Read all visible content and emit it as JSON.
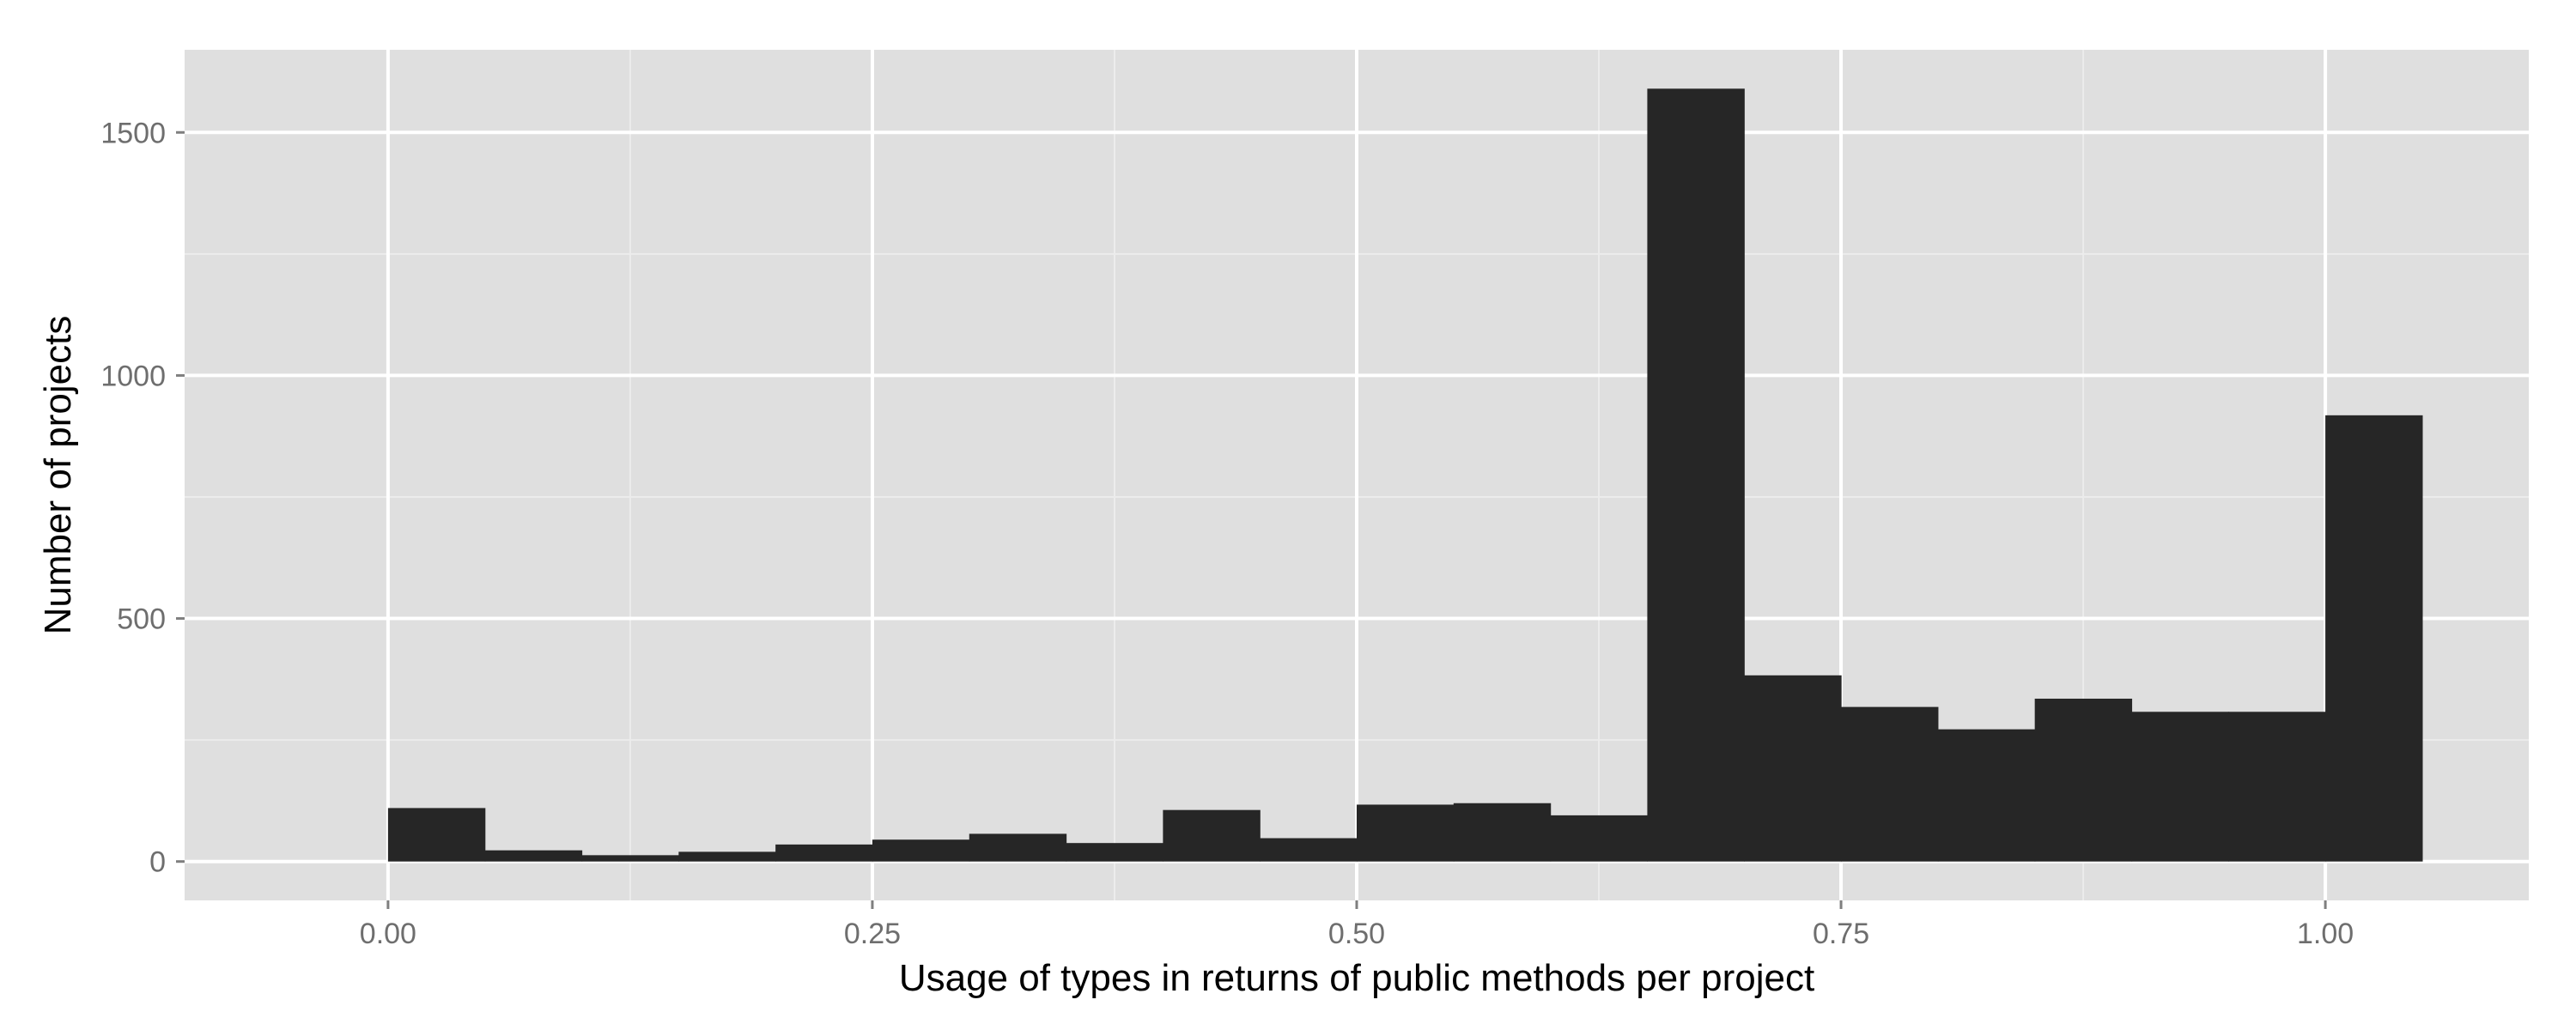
{
  "chart_data": {
    "type": "bar",
    "title": "",
    "xlabel": "Usage of types in returns of public methods per project",
    "ylabel": "Number of projects",
    "bin_width": 0.05,
    "bins": [
      {
        "x0": 0.0,
        "x1": 0.05,
        "value": 110
      },
      {
        "x0": 0.05,
        "x1": 0.1,
        "value": 23
      },
      {
        "x0": 0.1,
        "x1": 0.15,
        "value": 13
      },
      {
        "x0": 0.15,
        "x1": 0.2,
        "value": 20
      },
      {
        "x0": 0.2,
        "x1": 0.25,
        "value": 35
      },
      {
        "x0": 0.25,
        "x1": 0.3,
        "value": 45
      },
      {
        "x0": 0.3,
        "x1": 0.35,
        "value": 57
      },
      {
        "x0": 0.35,
        "x1": 0.4,
        "value": 38
      },
      {
        "x0": 0.4,
        "x1": 0.45,
        "value": 106
      },
      {
        "x0": 0.45,
        "x1": 0.5,
        "value": 48
      },
      {
        "x0": 0.5,
        "x1": 0.55,
        "value": 117
      },
      {
        "x0": 0.55,
        "x1": 0.6,
        "value": 120
      },
      {
        "x0": 0.6,
        "x1": 0.65,
        "value": 95
      },
      {
        "x0": 0.65,
        "x1": 0.7,
        "value": 1590
      },
      {
        "x0": 0.7,
        "x1": 0.75,
        "value": 383
      },
      {
        "x0": 0.75,
        "x1": 0.8,
        "value": 318
      },
      {
        "x0": 0.8,
        "x1": 0.85,
        "value": 272
      },
      {
        "x0": 0.85,
        "x1": 0.9,
        "value": 335
      },
      {
        "x0": 0.9,
        "x1": 0.95,
        "value": 308
      },
      {
        "x0": 0.95,
        "x1": 1.0,
        "value": 308
      },
      {
        "x0": 1.0,
        "x1": 1.05,
        "value": 918
      }
    ],
    "xlim": [
      -0.105,
      1.105
    ],
    "ylim": [
      -80,
      1670
    ],
    "x_ticks": [
      0.0,
      0.25,
      0.5,
      0.75,
      1.0
    ],
    "x_tick_labels": [
      "0.00",
      "0.25",
      "0.50",
      "0.75",
      "1.00"
    ],
    "y_ticks": [
      0,
      500,
      1000,
      1500
    ],
    "y_tick_labels": [
      "0",
      "500",
      "1000",
      "1500"
    ],
    "grid": true,
    "legend": "none",
    "colors": {
      "bar": "#262626",
      "panel": "#dfdfdf",
      "grid_major": "#ffffff",
      "grid_minor": "#ececec",
      "tick_text": "#6e6e6e",
      "axis_text": "#000000"
    }
  }
}
